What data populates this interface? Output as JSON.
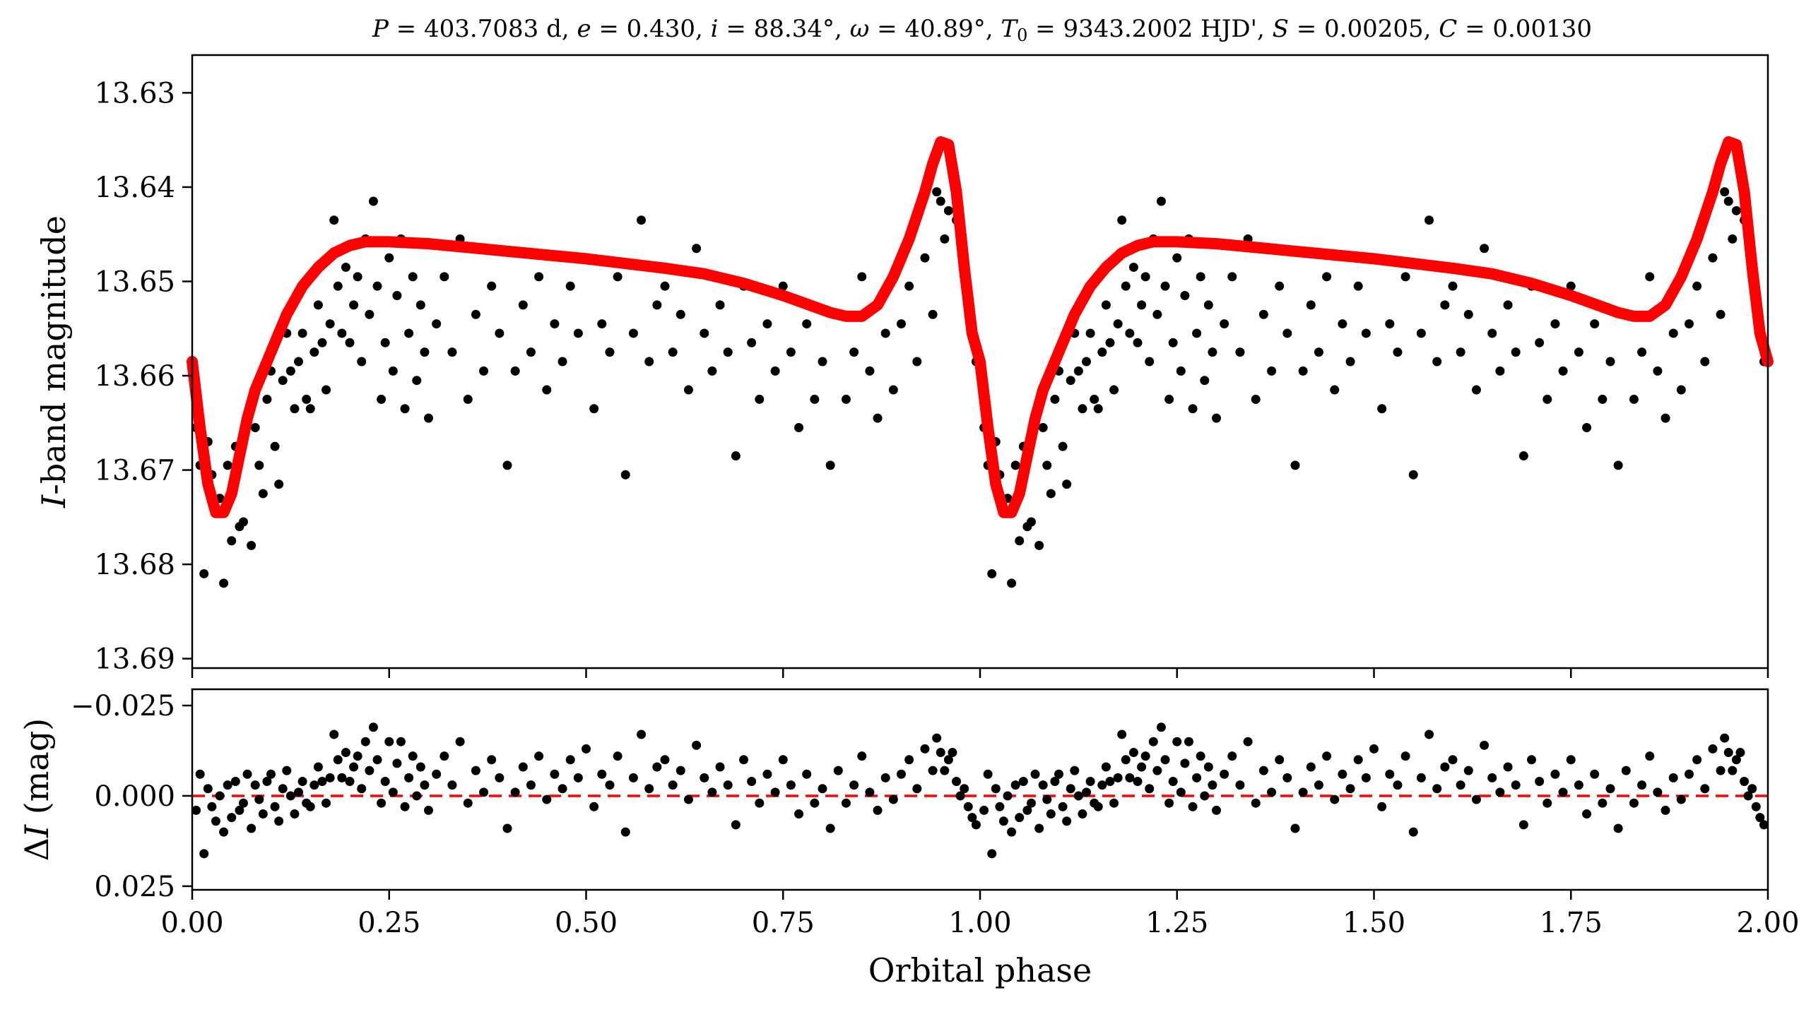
{
  "title": "P = 403.7083 d, e = 0.430, i = 88.34°, ω = 40.89°, T0 = 9343.2002 HJD', S = 0.00205, C = 0.00130",
  "title_parts": {
    "P_sym": "P",
    "P_val": " = 403.7083 d, ",
    "e_sym": "e",
    "e_val": " = 0.430, ",
    "i_sym": "i",
    "i_val": " = 88.34°, ",
    "w_sym": "ω",
    "w_val": " = 40.89°, ",
    "T_sym": "T",
    "T_sub": "0",
    "T_val": " = 9343.2002 HJD', ",
    "S_sym": "S",
    "S_val": " = 0.00205, ",
    "C_sym": "C",
    "C_val": " = 0.00130"
  },
  "top_panel": {
    "ylabel_italic": "I",
    "ylabel_rest": "-band magnitude",
    "ytick_labels": [
      "13.63",
      "13.64",
      "13.65",
      "13.66",
      "13.67",
      "13.68",
      "13.69"
    ]
  },
  "bottom_panel": {
    "ylabel_prefix": "Δ",
    "ylabel_italic": "I",
    "ylabel_rest": " (mag)",
    "ytick_labels": [
      "−0.025",
      "0.000",
      "0.025"
    ]
  },
  "xlabel": "Orbital phase",
  "xtick_labels": [
    "0.00",
    "0.25",
    "0.50",
    "0.75",
    "1.00",
    "1.25",
    "1.50",
    "1.75",
    "2.00"
  ],
  "colors": {
    "points": "#000000",
    "model": "#ff0000",
    "zero_line": "#ff0000"
  },
  "chart_data": [
    {
      "type": "scatter",
      "panel": "top",
      "xlabel": "",
      "ylabel": "I-band magnitude",
      "xlim": [
        0.0,
        2.0
      ],
      "ylim": [
        13.691,
        13.626
      ],
      "y_inverted": true,
      "xticks": [
        0.0,
        0.25,
        0.5,
        0.75,
        1.0,
        1.25,
        1.5,
        1.75,
        2.0
      ],
      "yticks": [
        13.63,
        13.64,
        13.65,
        13.66,
        13.67,
        13.68,
        13.69
      ],
      "grid": false,
      "series": [
        {
          "kind": "points",
          "color": "#000000",
          "x": [
            0.005,
            0.01,
            0.015,
            0.02,
            0.025,
            0.03,
            0.035,
            0.04,
            0.045,
            0.05,
            0.055,
            0.06,
            0.065,
            0.07,
            0.075,
            0.08,
            0.085,
            0.09,
            0.095,
            0.1,
            0.105,
            0.11,
            0.115,
            0.12,
            0.125,
            0.13,
            0.135,
            0.14,
            0.145,
            0.15,
            0.155,
            0.16,
            0.165,
            0.17,
            0.175,
            0.18,
            0.185,
            0.19,
            0.195,
            0.2,
            0.205,
            0.21,
            0.215,
            0.22,
            0.225,
            0.23,
            0.235,
            0.24,
            0.245,
            0.25,
            0.255,
            0.26,
            0.265,
            0.27,
            0.275,
            0.28,
            0.285,
            0.29,
            0.295,
            0.3,
            0.31,
            0.32,
            0.33,
            0.34,
            0.35,
            0.36,
            0.37,
            0.38,
            0.39,
            0.4,
            0.41,
            0.42,
            0.43,
            0.44,
            0.45,
            0.46,
            0.47,
            0.48,
            0.49,
            0.5,
            0.51,
            0.52,
            0.53,
            0.54,
            0.55,
            0.56,
            0.57,
            0.58,
            0.59,
            0.6,
            0.61,
            0.62,
            0.63,
            0.64,
            0.65,
            0.66,
            0.67,
            0.68,
            0.69,
            0.7,
            0.71,
            0.72,
            0.73,
            0.74,
            0.75,
            0.76,
            0.77,
            0.78,
            0.79,
            0.8,
            0.81,
            0.82,
            0.83,
            0.84,
            0.85,
            0.86,
            0.87,
            0.88,
            0.89,
            0.9,
            0.91,
            0.92,
            0.93,
            0.94,
            0.945,
            0.95,
            0.955,
            0.96,
            0.965,
            0.97,
            0.975,
            0.98,
            0.985,
            0.99,
            0.995
          ],
          "y": [
            13.6655,
            13.6695,
            13.681,
            13.667,
            13.6705,
            13.6745,
            13.673,
            13.682,
            13.6695,
            13.6775,
            13.6675,
            13.676,
            13.6755,
            13.6645,
            13.678,
            13.6655,
            13.6695,
            13.6725,
            13.6625,
            13.6595,
            13.6675,
            13.6715,
            13.6605,
            13.6555,
            13.6595,
            13.6635,
            13.6585,
            13.6555,
            13.6625,
            13.6635,
            13.6575,
            13.6525,
            13.6565,
            13.6615,
            13.6545,
            13.6435,
            13.6505,
            13.6555,
            13.6485,
            13.6565,
            13.6525,
            13.6495,
            13.6585,
            13.6455,
            13.6535,
            13.6415,
            13.6505,
            13.6625,
            13.6565,
            13.6475,
            13.6595,
            13.6515,
            13.6455,
            13.6635,
            13.6555,
            13.6495,
            13.6605,
            13.6525,
            13.6575,
            13.6645,
            13.6545,
            13.6495,
            13.6575,
            13.6455,
            13.6625,
            13.6535,
            13.6595,
            13.6505,
            13.6555,
            13.6695,
            13.6595,
            13.6525,
            13.6575,
            13.6495,
            13.6615,
            13.6545,
            13.6585,
            13.6505,
            13.6555,
            13.6475,
            13.6635,
            13.6545,
            13.6575,
            13.6495,
            13.6705,
            13.6555,
            13.6435,
            13.6585,
            13.6525,
            13.6505,
            13.6575,
            13.6535,
            13.6615,
            13.6465,
            13.6555,
            13.6595,
            13.6525,
            13.6575,
            13.6685,
            13.6505,
            13.6565,
            13.6625,
            13.6545,
            13.6595,
            13.6505,
            13.6575,
            13.6655,
            13.6545,
            13.6625,
            13.6585,
            13.6695,
            13.6535,
            13.6625,
            13.6575,
            13.6495,
            13.6595,
            13.6645,
            13.6555,
            13.6615,
            13.6545,
            13.6505,
            13.6585,
            13.6475,
            13.6535,
            13.6405,
            13.6415,
            13.6455,
            13.6425,
            13.6385,
            13.6435,
            13.6455,
            13.6495,
            13.6525,
            13.6555,
            13.6585
          ],
          "mirror_period": 1.0
        },
        {
          "kind": "model",
          "name": "",
          "color": "#ff0000",
          "x": [
            0.0,
            0.01,
            0.02,
            0.03,
            0.04,
            0.05,
            0.06,
            0.07,
            0.08,
            0.09,
            0.1,
            0.11,
            0.12,
            0.13,
            0.14,
            0.15,
            0.16,
            0.18,
            0.2,
            0.22,
            0.25,
            0.3,
            0.35,
            0.4,
            0.45,
            0.5,
            0.55,
            0.6,
            0.65,
            0.7,
            0.75,
            0.78,
            0.81,
            0.83,
            0.85,
            0.87,
            0.89,
            0.91,
            0.93,
            0.94,
            0.95,
            0.96,
            0.97,
            0.98,
            0.99,
            1.0
          ],
          "y": [
            13.6585,
            13.6655,
            13.6715,
            13.6745,
            13.6745,
            13.6725,
            13.6685,
            13.6645,
            13.6615,
            13.6595,
            13.6575,
            13.6555,
            13.6535,
            13.652,
            13.6505,
            13.6495,
            13.6485,
            13.647,
            13.6462,
            13.6458,
            13.6458,
            13.646,
            13.6464,
            13.6468,
            13.6472,
            13.6476,
            13.6481,
            13.6486,
            13.6492,
            13.6502,
            13.6515,
            13.6524,
            13.6533,
            13.6537,
            13.6537,
            13.6525,
            13.6495,
            13.6455,
            13.6405,
            13.6375,
            13.6352,
            13.6355,
            13.6405,
            13.6485,
            13.6555,
            13.6585
          ],
          "mirror_period": 1.0
        }
      ]
    },
    {
      "type": "scatter",
      "panel": "bottom",
      "xlabel": "Orbital phase",
      "ylabel": "ΔI (mag)",
      "xlim": [
        0.0,
        2.0
      ],
      "ylim": [
        0.026,
        -0.0295
      ],
      "y_inverted": true,
      "xticks": [
        0.0,
        0.25,
        0.5,
        0.75,
        1.0,
        1.25,
        1.5,
        1.75,
        2.0
      ],
      "yticks": [
        -0.025,
        0.0,
        0.025
      ],
      "grid": false,
      "reference_line": {
        "y": 0.0,
        "color": "#ff0000",
        "style": "dashed"
      },
      "series": [
        {
          "kind": "points",
          "color": "#000000",
          "x": [
            0.005,
            0.01,
            0.015,
            0.02,
            0.025,
            0.03,
            0.035,
            0.04,
            0.045,
            0.05,
            0.055,
            0.06,
            0.065,
            0.07,
            0.075,
            0.08,
            0.085,
            0.09,
            0.095,
            0.1,
            0.105,
            0.11,
            0.115,
            0.12,
            0.125,
            0.13,
            0.135,
            0.14,
            0.145,
            0.15,
            0.155,
            0.16,
            0.165,
            0.17,
            0.175,
            0.18,
            0.185,
            0.19,
            0.195,
            0.2,
            0.205,
            0.21,
            0.215,
            0.22,
            0.225,
            0.23,
            0.235,
            0.24,
            0.245,
            0.25,
            0.255,
            0.26,
            0.265,
            0.27,
            0.275,
            0.28,
            0.285,
            0.29,
            0.295,
            0.3,
            0.31,
            0.32,
            0.33,
            0.34,
            0.35,
            0.36,
            0.37,
            0.38,
            0.39,
            0.4,
            0.41,
            0.42,
            0.43,
            0.44,
            0.45,
            0.46,
            0.47,
            0.48,
            0.49,
            0.5,
            0.51,
            0.52,
            0.53,
            0.54,
            0.55,
            0.56,
            0.57,
            0.58,
            0.59,
            0.6,
            0.61,
            0.62,
            0.63,
            0.64,
            0.65,
            0.66,
            0.67,
            0.68,
            0.69,
            0.7,
            0.71,
            0.72,
            0.73,
            0.74,
            0.75,
            0.76,
            0.77,
            0.78,
            0.79,
            0.8,
            0.81,
            0.82,
            0.83,
            0.84,
            0.85,
            0.86,
            0.87,
            0.88,
            0.89,
            0.9,
            0.91,
            0.92,
            0.93,
            0.94,
            0.945,
            0.95,
            0.955,
            0.96,
            0.965,
            0.97,
            0.975,
            0.98,
            0.985,
            0.99,
            0.995
          ],
          "y": [
            0.004,
            -0.006,
            0.016,
            -0.002,
            0.003,
            0.007,
            0.0,
            0.01,
            -0.003,
            0.006,
            -0.004,
            0.004,
            0.002,
            -0.006,
            0.009,
            -0.003,
            0.001,
            0.005,
            -0.004,
            -0.006,
            0.003,
            0.007,
            -0.002,
            -0.007,
            0.0,
            0.005,
            -0.001,
            -0.004,
            0.002,
            0.003,
            -0.003,
            -0.008,
            -0.004,
            0.002,
            -0.005,
            -0.017,
            -0.01,
            -0.005,
            -0.012,
            -0.004,
            -0.008,
            -0.011,
            -0.002,
            -0.015,
            -0.007,
            -0.019,
            -0.01,
            0.002,
            -0.004,
            -0.015,
            -0.001,
            -0.009,
            -0.015,
            0.003,
            -0.005,
            -0.011,
            0.0,
            -0.008,
            -0.003,
            0.004,
            -0.006,
            -0.011,
            -0.003,
            -0.015,
            0.002,
            -0.007,
            -0.001,
            -0.01,
            -0.005,
            0.009,
            -0.001,
            -0.008,
            -0.003,
            -0.011,
            0.001,
            -0.006,
            -0.002,
            -0.01,
            -0.005,
            -0.013,
            0.003,
            -0.006,
            -0.003,
            -0.011,
            0.01,
            -0.005,
            -0.017,
            -0.002,
            -0.008,
            -0.01,
            -0.003,
            -0.007,
            0.001,
            -0.014,
            -0.005,
            -0.001,
            -0.008,
            -0.003,
            0.008,
            -0.01,
            -0.004,
            0.002,
            -0.006,
            -0.001,
            -0.01,
            -0.003,
            0.005,
            -0.006,
            0.002,
            -0.002,
            0.009,
            -0.007,
            0.002,
            -0.003,
            -0.011,
            -0.001,
            0.004,
            -0.005,
            0.001,
            -0.006,
            -0.01,
            -0.002,
            -0.013,
            -0.007,
            -0.016,
            -0.012,
            -0.007,
            -0.01,
            -0.012,
            -0.004,
            0.0,
            -0.002,
            0.003,
            0.006,
            0.008
          ],
          "mirror_period": 1.0
        }
      ]
    }
  ]
}
